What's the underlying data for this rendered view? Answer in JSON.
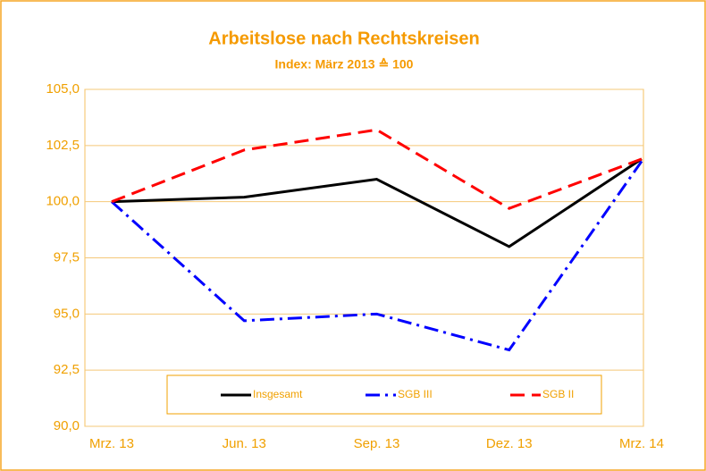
{
  "chart_data": {
    "type": "line",
    "title": "Arbeitslose nach Rechtskreisen",
    "subtitle": "Index:  März 2013  ≙ 100",
    "categories": [
      "Mrz. 13",
      "Jun. 13",
      "Sep. 13",
      "Dez. 13",
      "Mrz. 14"
    ],
    "series": [
      {
        "name": "Insgesamt",
        "color": "#000000",
        "style": "solid",
        "values": [
          100.0,
          100.2,
          101.0,
          98.0,
          101.9
        ]
      },
      {
        "name": "SGB III",
        "color": "#0000ff",
        "style": "dashdot",
        "values": [
          100.0,
          94.7,
          95.0,
          93.4,
          101.8
        ]
      },
      {
        "name": "SGB II",
        "color": "#ff0000",
        "style": "dashed",
        "values": [
          100.0,
          102.3,
          103.2,
          99.7,
          101.9
        ]
      }
    ],
    "ylim": [
      90,
      105
    ],
    "yticks": [
      {
        "value": 90,
        "label": "90,0"
      },
      {
        "value": 92.5,
        "label": "92,5"
      },
      {
        "value": 95,
        "label": "95,0"
      },
      {
        "value": 97.5,
        "label": "97,5"
      },
      {
        "value": 100,
        "label": "100,0"
      },
      {
        "value": 102.5,
        "label": "102,5"
      },
      {
        "value": 105,
        "label": "105,0"
      }
    ],
    "grid": true,
    "legend": "bottom"
  }
}
